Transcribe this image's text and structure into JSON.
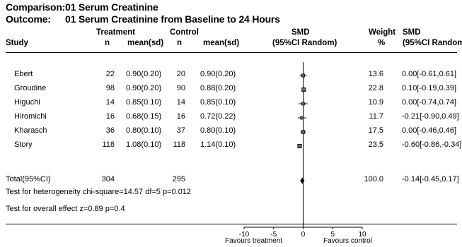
{
  "header": {
    "comparison_label": "Comparison:",
    "comparison_value": "01 Serum Creatinine",
    "outcome_label": "Outcome:",
    "outcome_value": "01 Serum Creatinine from Baseline to 24 Hours"
  },
  "columns": {
    "study": "Study",
    "treatment": "Treatment",
    "control": "Control",
    "n": "n",
    "mean_sd": "mean(sd)",
    "smd_top": "SMD",
    "smd_sub": "(95%CI Random)",
    "weight_top": "Weight",
    "weight_sub": "%",
    "smd2_top": "SMD",
    "smd2_sub": "(95%CI Random)"
  },
  "studies": [
    {
      "name": "Ebert",
      "t_n": "22",
      "t_mean": "0.90(0.20)",
      "c_n": "20",
      "c_mean": "0.90(0.20)",
      "weight": "13.6",
      "ci_text": "0.00[-0.61,0.61]"
    },
    {
      "name": "Groudine",
      "t_n": "98",
      "t_mean": "0.90(0.20)",
      "c_n": "90",
      "c_mean": "0.88(0.20)",
      "weight": "22.8",
      "ci_text": "0.10[-0.19,0.39]"
    },
    {
      "name": "Higuchi",
      "t_n": "14",
      "t_mean": "0.85(0.10)",
      "c_n": "14",
      "c_mean": "0.85(0.10)",
      "weight": "10.9",
      "ci_text": "0.00[-0.74,0.74]"
    },
    {
      "name": "Hiromichi",
      "t_n": "16",
      "t_mean": "0.68(0.15)",
      "c_n": "16",
      "c_mean": "0.72(0.22)",
      "weight": "11.7",
      "ci_text": "-0.21[-0.90,0.49]"
    },
    {
      "name": "Kharasch",
      "t_n": "36",
      "t_mean": "0.80(0.10)",
      "c_n": "37",
      "c_mean": "0.80(0.10)",
      "weight": "17.5",
      "ci_text": "0.00[-0.46,0.46]"
    },
    {
      "name": "Story",
      "t_n": "118",
      "t_mean": "1.08(0.10)",
      "c_n": "118",
      "c_mean": "1.14(0.10)",
      "weight": "23.5",
      "ci_text": "-0.60[-0.86,-0.34]"
    }
  ],
  "total": {
    "name": "Total(95%CI)",
    "t_n": "304",
    "c_n": "295",
    "weight": "100.0",
    "ci_text": "-0.14[-0.45,0.17]"
  },
  "heterogeneity": "Test for heterogeneity chi-square=14.57  df=5  p=0.012",
  "overall_effect": "Test for overall effect  z=0.89  p=0.4",
  "axis": {
    "left_label": "Favours treatment",
    "right_label": "Favours control"
  },
  "chart_data": {
    "type": "forest",
    "x_ticks": [
      -10,
      -5,
      0,
      5,
      10
    ],
    "xlim": [
      -10,
      10
    ],
    "studies": [
      {
        "name": "Ebert",
        "smd": 0.0,
        "lo": -0.61,
        "hi": 0.61,
        "weight": 13.6
      },
      {
        "name": "Groudine",
        "smd": 0.1,
        "lo": -0.19,
        "hi": 0.39,
        "weight": 22.8
      },
      {
        "name": "Higuchi",
        "smd": 0.0,
        "lo": -0.74,
        "hi": 0.74,
        "weight": 10.9
      },
      {
        "name": "Hiromichi",
        "smd": -0.21,
        "lo": -0.9,
        "hi": 0.49,
        "weight": 11.7
      },
      {
        "name": "Kharasch",
        "smd": 0.0,
        "lo": -0.46,
        "hi": 0.46,
        "weight": 17.5
      },
      {
        "name": "Story",
        "smd": -0.6,
        "lo": -0.86,
        "hi": -0.34,
        "weight": 23.5
      }
    ],
    "total": {
      "smd": -0.14,
      "lo": -0.45,
      "hi": 0.17
    }
  }
}
